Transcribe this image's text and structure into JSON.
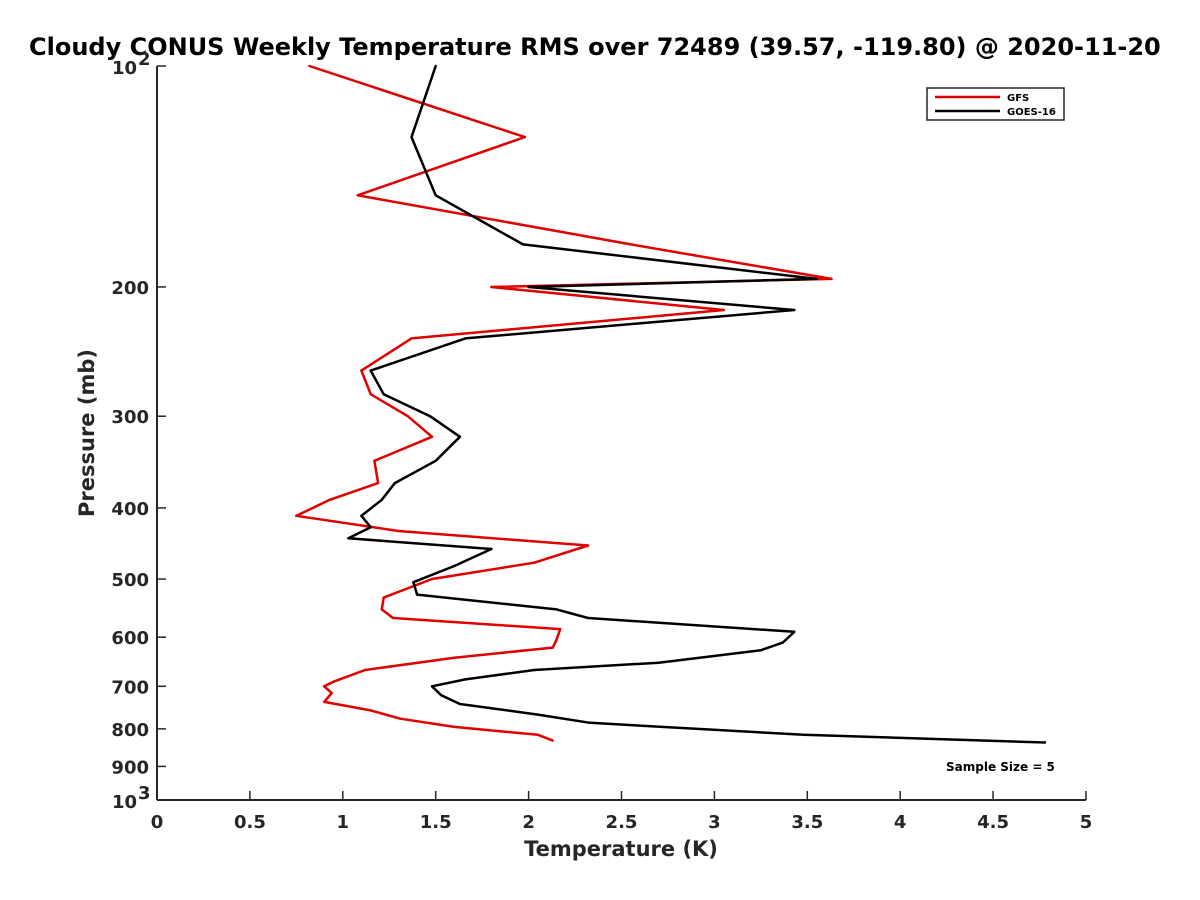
{
  "chart_data": {
    "type": "line",
    "title": "Cloudy CONUS Weekly Temperature RMS over 72489 (39.57, -119.80) @ 2020-11-20",
    "xlabel": "Temperature (K)",
    "ylabel": "Pressure (mb)",
    "xlim": [
      0,
      5
    ],
    "ylim": [
      100,
      1000
    ],
    "y_scale": "log",
    "y_reversed": true,
    "x_ticks": [
      "0",
      "0.5",
      "1",
      "1.5",
      "2",
      "2.5",
      "3",
      "3.5",
      "4",
      "4.5",
      "5"
    ],
    "y_ticks": [
      {
        "value": 100,
        "base": "10",
        "exp": "2"
      },
      {
        "value": 200,
        "label": "200"
      },
      {
        "value": 300,
        "label": "300"
      },
      {
        "value": 400,
        "label": "400"
      },
      {
        "value": 500,
        "label": "500"
      },
      {
        "value": 600,
        "label": "600"
      },
      {
        "value": 700,
        "label": "700"
      },
      {
        "value": 800,
        "label": "800"
      },
      {
        "value": 900,
        "label": "900"
      },
      {
        "value": 1000,
        "base": "10",
        "exp": "3"
      }
    ],
    "grid": false,
    "legend_position": "top-right",
    "annotation": "Sample Size = 5",
    "series": [
      {
        "name": "GFS",
        "color": "#e00000",
        "points": [
          [
            0.82,
            100
          ],
          [
            1.98,
            125
          ],
          [
            1.08,
            150
          ],
          [
            2.55,
            175
          ],
          [
            3.63,
            195
          ],
          [
            1.8,
            200
          ],
          [
            3.05,
            215
          ],
          [
            1.37,
            235
          ],
          [
            1.1,
            260
          ],
          [
            1.15,
            280
          ],
          [
            1.35,
            300
          ],
          [
            1.48,
            320
          ],
          [
            1.17,
            345
          ],
          [
            1.19,
            370
          ],
          [
            0.93,
            390
          ],
          [
            0.75,
            410
          ],
          [
            1.3,
            430
          ],
          [
            2.32,
            450
          ],
          [
            2.03,
            475
          ],
          [
            1.48,
            500
          ],
          [
            1.22,
            530
          ],
          [
            1.21,
            550
          ],
          [
            1.27,
            565
          ],
          [
            2.17,
            585
          ],
          [
            2.15,
            605
          ],
          [
            2.13,
            620
          ],
          [
            1.6,
            640
          ],
          [
            1.12,
            665
          ],
          [
            0.95,
            690
          ],
          [
            0.9,
            700
          ],
          [
            0.94,
            715
          ],
          [
            0.9,
            735
          ],
          [
            1.15,
            755
          ],
          [
            1.31,
            775
          ],
          [
            1.6,
            795
          ],
          [
            2.05,
            815
          ],
          [
            2.13,
            830
          ]
        ]
      },
      {
        "name": "GOES-16",
        "color": "#000000",
        "points": [
          [
            1.5,
            100
          ],
          [
            1.37,
            125
          ],
          [
            1.5,
            150
          ],
          [
            1.97,
            175
          ],
          [
            3.55,
            195
          ],
          [
            2.0,
            200
          ],
          [
            3.43,
            215
          ],
          [
            1.66,
            235
          ],
          [
            1.15,
            260
          ],
          [
            1.22,
            280
          ],
          [
            1.47,
            300
          ],
          [
            1.63,
            320
          ],
          [
            1.5,
            345
          ],
          [
            1.28,
            370
          ],
          [
            1.21,
            390
          ],
          [
            1.1,
            410
          ],
          [
            1.15,
            425
          ],
          [
            1.03,
            440
          ],
          [
            1.8,
            455
          ],
          [
            1.6,
            480
          ],
          [
            1.38,
            505
          ],
          [
            1.4,
            525
          ],
          [
            2.15,
            550
          ],
          [
            2.32,
            565
          ],
          [
            3.43,
            590
          ],
          [
            3.37,
            610
          ],
          [
            3.25,
            625
          ],
          [
            2.7,
            650
          ],
          [
            2.03,
            665
          ],
          [
            1.66,
            685
          ],
          [
            1.48,
            700
          ],
          [
            1.53,
            720
          ],
          [
            1.63,
            740
          ],
          [
            2.05,
            765
          ],
          [
            2.33,
            785
          ],
          [
            3.48,
            815
          ],
          [
            4.78,
            835
          ]
        ]
      }
    ]
  }
}
